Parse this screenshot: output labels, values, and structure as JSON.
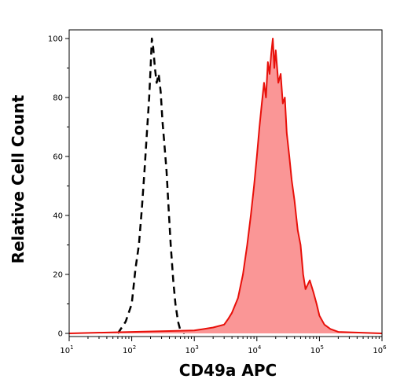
{
  "chart_data": {
    "type": "area",
    "xlabel": "CD49a APC",
    "ylabel": "Relative Cell Count",
    "x_scale": "log",
    "xlim": [
      10,
      1000000
    ],
    "ylim": [
      0,
      100
    ],
    "x_ticks": [
      {
        "value": 10,
        "base": "10",
        "exp": "1"
      },
      {
        "value": 100,
        "base": "10",
        "exp": "2"
      },
      {
        "value": 1000,
        "base": "10",
        "exp": "3"
      },
      {
        "value": 10000,
        "base": "10",
        "exp": "4"
      },
      {
        "value": 100000,
        "base": "10",
        "exp": "5"
      },
      {
        "value": 1000000,
        "base": "10",
        "exp": "6"
      }
    ],
    "y_ticks": [
      "0",
      "20",
      "40",
      "60",
      "80",
      "100"
    ],
    "grid": false,
    "series": [
      {
        "style": "dashed-outline",
        "color": "#000000",
        "x": [
          60,
          80,
          100,
          115,
          130,
          145,
          160,
          175,
          190,
          200,
          210,
          220,
          235,
          250,
          270,
          290,
          310,
          330,
          360,
          390,
          420,
          460,
          500,
          550,
          600,
          700
        ],
        "y": [
          0,
          4,
          10,
          22,
          30,
          42,
          55,
          68,
          80,
          90,
          100,
          97,
          90,
          85,
          88,
          82,
          72,
          65,
          55,
          42,
          30,
          18,
          10,
          4,
          1,
          0
        ]
      },
      {
        "style": "filled",
        "color": "#e8100a",
        "fill": "#fa9696",
        "x": [
          10,
          100,
          1000,
          2000,
          3000,
          3500,
          4000,
          5000,
          6000,
          7000,
          8000,
          9000,
          10000,
          11000,
          12000,
          13000,
          14000,
          15000,
          16000,
          17000,
          18000,
          19000,
          20000,
          22000,
          24000,
          26000,
          28000,
          30000,
          33000,
          36000,
          40000,
          45000,
          50000,
          55000,
          60000,
          70000,
          80000,
          90000,
          100000,
          120000,
          150000,
          200000,
          1000000
        ],
        "y": [
          0,
          0.5,
          1,
          2,
          3,
          5,
          7,
          12,
          20,
          30,
          40,
          50,
          60,
          70,
          78,
          85,
          80,
          92,
          88,
          95,
          100,
          90,
          96,
          85,
          88,
          78,
          80,
          68,
          60,
          52,
          45,
          35,
          30,
          20,
          15,
          18,
          14,
          10,
          6,
          3,
          1.5,
          0.5,
          0
        ]
      }
    ]
  }
}
